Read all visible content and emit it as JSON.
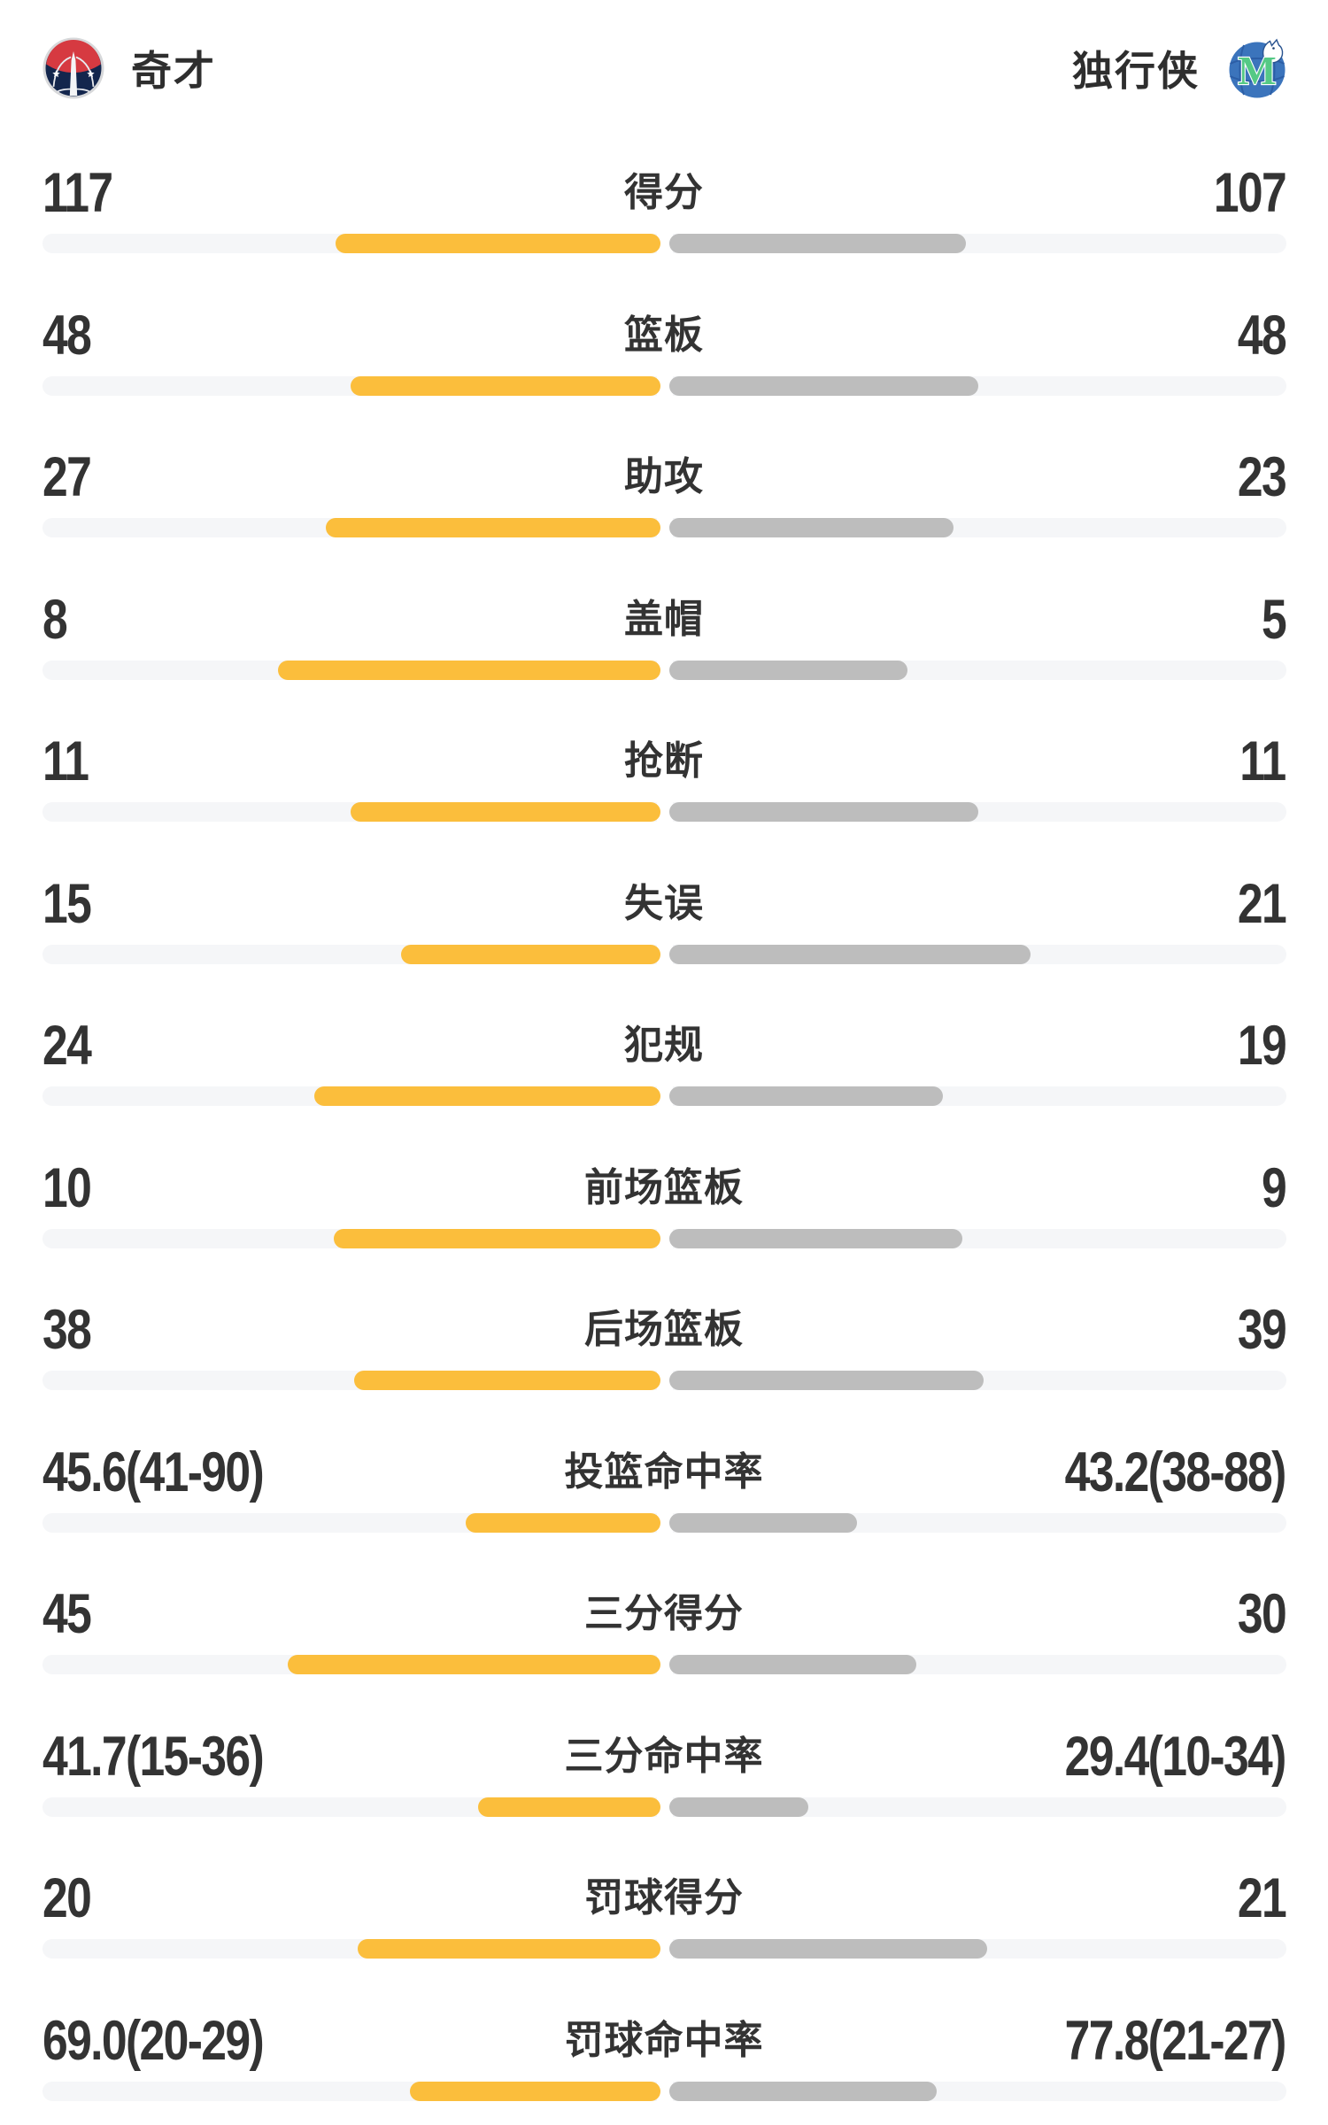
{
  "header": {
    "home": {
      "name": "奇才",
      "logo": "wizards-logo"
    },
    "away": {
      "name": "独行侠",
      "logo": "mavericks-logo"
    }
  },
  "colors": {
    "home_bar": "#FBBE3C",
    "away_bar": "#BDBDBD",
    "bar_track": "#F5F6F8",
    "value_text": "#333333"
  },
  "chart_data": {
    "type": "bar",
    "orientation": "horizontal-diverging",
    "legend_position": "top",
    "teams": [
      "奇才",
      "独行侠"
    ],
    "rows": [
      {
        "label": "得分",
        "home": {
          "display": "117",
          "value": 117
        },
        "away": {
          "display": "107",
          "value": 107
        },
        "bars_pct": [
          26.1,
          23.9
        ]
      },
      {
        "label": "篮板",
        "home": {
          "display": "48",
          "value": 48
        },
        "away": {
          "display": "48",
          "value": 48
        },
        "bars_pct": [
          24.9,
          24.9
        ]
      },
      {
        "label": "助攻",
        "home": {
          "display": "27",
          "value": 27
        },
        "away": {
          "display": "23",
          "value": 23
        },
        "bars_pct": [
          26.9,
          22.9
        ]
      },
      {
        "label": "盖帽",
        "home": {
          "display": "8",
          "value": 8
        },
        "away": {
          "display": "5",
          "value": 5
        },
        "bars_pct": [
          30.7,
          19.2
        ]
      },
      {
        "label": "抢断",
        "home": {
          "display": "11",
          "value": 11
        },
        "away": {
          "display": "11",
          "value": 11
        },
        "bars_pct": [
          24.9,
          24.9
        ]
      },
      {
        "label": "失误",
        "home": {
          "display": "15",
          "value": 15
        },
        "away": {
          "display": "21",
          "value": 21
        },
        "bars_pct": [
          20.8,
          29.1
        ]
      },
      {
        "label": "犯规",
        "home": {
          "display": "24",
          "value": 24
        },
        "away": {
          "display": "19",
          "value": 19
        },
        "bars_pct": [
          27.8,
          22.0
        ]
      },
      {
        "label": "前场篮板",
        "home": {
          "display": "10",
          "value": 10
        },
        "away": {
          "display": "9",
          "value": 9
        },
        "bars_pct": [
          26.2,
          23.6
        ]
      },
      {
        "label": "后场篮板",
        "home": {
          "display": "38",
          "value": 38
        },
        "away": {
          "display": "39",
          "value": 39
        },
        "bars_pct": [
          24.6,
          25.3
        ]
      },
      {
        "label": "投篮命中率",
        "home": {
          "display": "45.6(41-90)",
          "pct": 45.6,
          "made": 41,
          "attempted": 90
        },
        "away": {
          "display": "43.2(38-88)",
          "pct": 43.2,
          "made": 38,
          "attempted": 88
        },
        "bars_pct": [
          15.6,
          15.1
        ]
      },
      {
        "label": "三分得分",
        "home": {
          "display": "45",
          "value": 45
        },
        "away": {
          "display": "30",
          "value": 30
        },
        "bars_pct": [
          29.9,
          19.9
        ]
      },
      {
        "label": "三分命中率",
        "home": {
          "display": "41.7(15-36)",
          "pct": 41.7,
          "made": 15,
          "attempted": 36
        },
        "away": {
          "display": "29.4(10-34)",
          "pct": 29.4,
          "made": 10,
          "attempted": 34
        },
        "bars_pct": [
          14.6,
          11.2
        ]
      },
      {
        "label": "罚球得分",
        "home": {
          "display": "20",
          "value": 20
        },
        "away": {
          "display": "21",
          "value": 21
        },
        "bars_pct": [
          24.3,
          25.6
        ]
      },
      {
        "label": "罚球命中率",
        "home": {
          "display": "69.0(20-29)",
          "pct": 69.0,
          "made": 20,
          "attempted": 29
        },
        "away": {
          "display": "77.8(21-27)",
          "pct": 77.8,
          "made": 21,
          "attempted": 27
        },
        "bars_pct": [
          20.1,
          21.5
        ]
      }
    ]
  }
}
